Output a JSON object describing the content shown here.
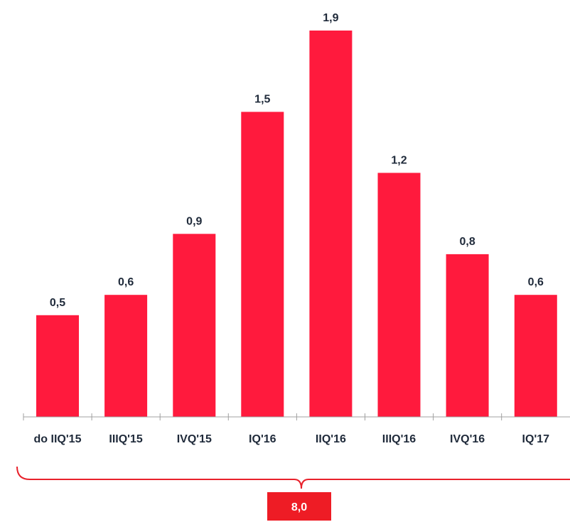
{
  "chart_data": {
    "type": "bar",
    "categories": [
      "do IIQ'15",
      "IIIQ'15",
      "IVQ'15",
      "IQ'16",
      "IIQ'16",
      "IIIQ'16",
      "IVQ'16",
      "IQ'17"
    ],
    "values": [
      0.5,
      0.6,
      0.9,
      1.5,
      1.9,
      1.2,
      0.8,
      0.6
    ],
    "value_labels": [
      "0,5",
      "0,6",
      "0,9",
      "1,5",
      "1,9",
      "1,2",
      "0,8",
      "0,6"
    ],
    "total_label": "8,0",
    "ylim": [
      0,
      1.9
    ],
    "grid": false,
    "legend": "none",
    "colors": {
      "bar": "#ff1a3d",
      "axis": "#a0a0a0",
      "brace": "#e8212b",
      "total_box": "#ee1c25",
      "text": "#1f2a3a"
    }
  }
}
